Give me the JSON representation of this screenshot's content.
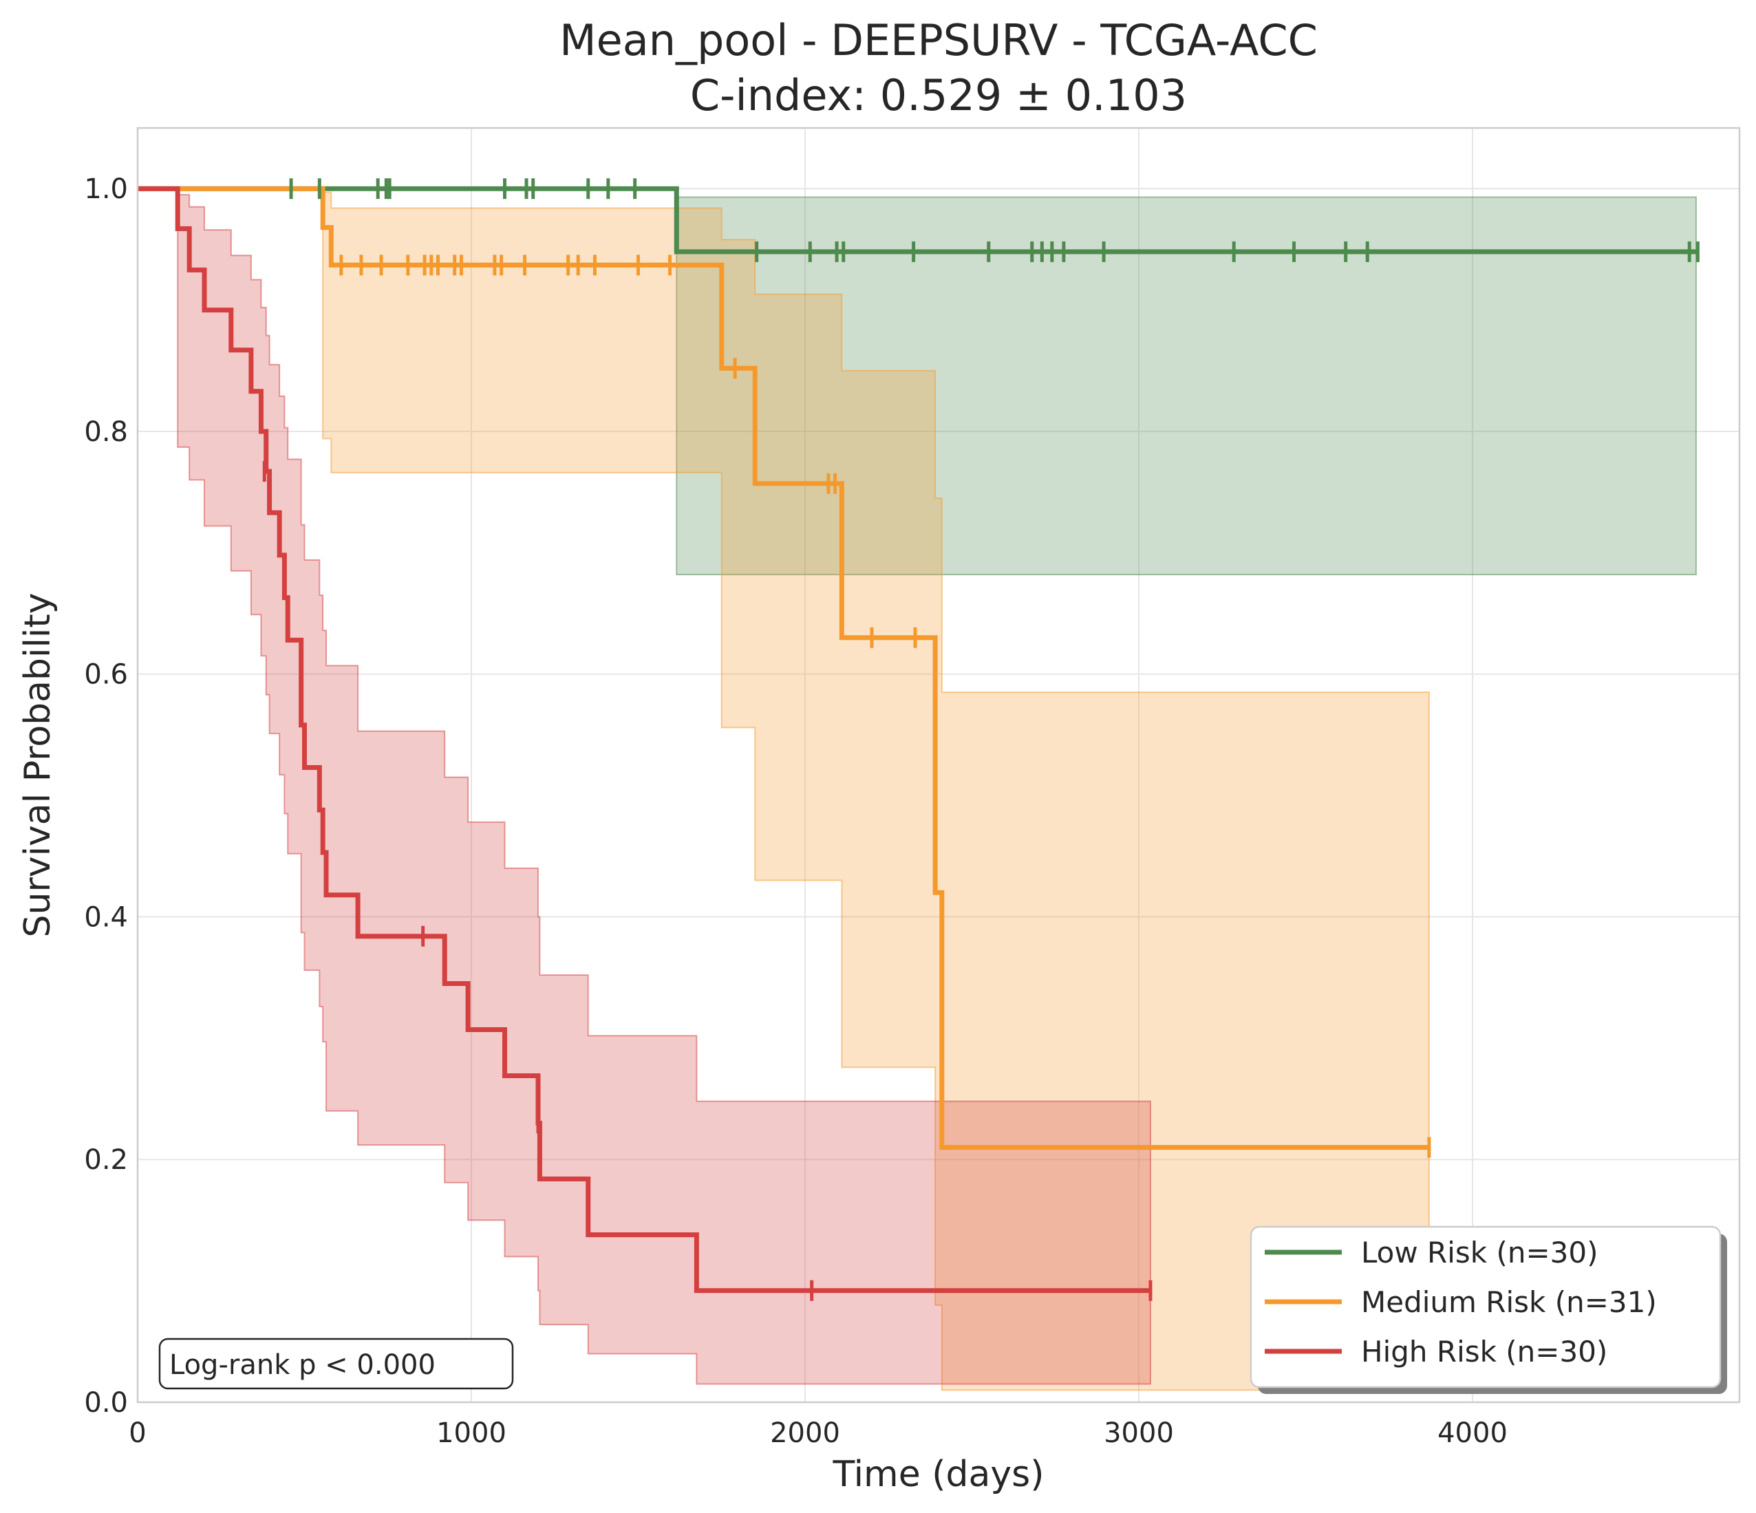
{
  "chart_data": {
    "type": "line",
    "title": "Mean_pool - DEEPSURV - TCGA-ACC",
    "subtitle": "C-index: 0.529 ± 0.103",
    "xlabel": "Time (days)",
    "ylabel": "Survival Probability",
    "xlim": [
      0,
      4800
    ],
    "ylim": [
      0,
      1.05
    ],
    "xticks": [
      0,
      1000,
      2000,
      3000,
      4000
    ],
    "xtick_labels": [
      "0",
      "1000",
      "2000",
      "3000",
      "4000"
    ],
    "yticks": [
      0,
      0.2,
      0.4,
      0.6,
      0.8,
      1.0
    ],
    "ytick_labels": [
      "0.0",
      "0.2",
      "0.4",
      "0.6",
      "0.8",
      "1.0"
    ],
    "grid": true,
    "legend_position": "bottom-right",
    "annotation": "Log-rank p < 0.000",
    "series": [
      {
        "name": "Low Risk (n=30)",
        "color": "#4e8a4e",
        "steps": [
          [
            0,
            1.0
          ],
          [
            1615,
            0.948
          ],
          [
            4670,
            0.948
          ]
        ],
        "censored": [
          [
            460,
            1.0
          ],
          [
            545,
            1.0
          ],
          [
            720,
            1.0
          ],
          [
            745,
            1.0
          ],
          [
            755,
            1.0
          ],
          [
            1100,
            1.0
          ],
          [
            1165,
            1.0
          ],
          [
            1185,
            1.0
          ],
          [
            1350,
            1.0
          ],
          [
            1410,
            1.0
          ],
          [
            1490,
            1.0
          ],
          [
            1855,
            0.948
          ],
          [
            2015,
            0.948
          ],
          [
            2095,
            0.948
          ],
          [
            2115,
            0.948
          ],
          [
            2325,
            0.948
          ],
          [
            2550,
            0.948
          ],
          [
            2680,
            0.948
          ],
          [
            2710,
            0.948
          ],
          [
            2740,
            0.948
          ],
          [
            2775,
            0.948
          ],
          [
            2895,
            0.948
          ],
          [
            3285,
            0.948
          ],
          [
            3465,
            0.948
          ],
          [
            3620,
            0.948
          ],
          [
            3685,
            0.948
          ],
          [
            4650,
            0.948
          ],
          [
            4675,
            0.948
          ]
        ],
        "ci": [
          [
            1615,
            0.682,
            0.993
          ],
          [
            4670,
            0.682,
            0.993
          ]
        ]
      },
      {
        "name": "Medium Risk (n=31)",
        "color": "#f5992d",
        "steps": [
          [
            0,
            1.0
          ],
          [
            555,
            0.968
          ],
          [
            580,
            0.937
          ],
          [
            1750,
            0.852
          ],
          [
            1850,
            0.757
          ],
          [
            2110,
            0.63
          ],
          [
            2390,
            0.42
          ],
          [
            2410,
            0.21
          ],
          [
            3870,
            0.21
          ]
        ],
        "censored": [
          [
            610,
            0.937
          ],
          [
            670,
            0.937
          ],
          [
            730,
            0.937
          ],
          [
            810,
            0.937
          ],
          [
            860,
            0.937
          ],
          [
            880,
            0.937
          ],
          [
            900,
            0.937
          ],
          [
            950,
            0.937
          ],
          [
            970,
            0.937
          ],
          [
            1070,
            0.937
          ],
          [
            1090,
            0.937
          ],
          [
            1160,
            0.937
          ],
          [
            1290,
            0.937
          ],
          [
            1320,
            0.937
          ],
          [
            1370,
            0.937
          ],
          [
            1500,
            0.937
          ],
          [
            1595,
            0.937
          ],
          [
            1790,
            0.852
          ],
          [
            2070,
            0.757
          ],
          [
            2090,
            0.757
          ],
          [
            2200,
            0.63
          ],
          [
            2330,
            0.63
          ],
          [
            3870,
            0.21
          ]
        ],
        "ci": [
          [
            555,
            0.794,
            0.997
          ],
          [
            580,
            0.766,
            0.984
          ],
          [
            1750,
            0.556,
            0.958
          ],
          [
            1850,
            0.43,
            0.913
          ],
          [
            2110,
            0.276,
            0.85
          ],
          [
            2390,
            0.08,
            0.745
          ],
          [
            2410,
            0.01,
            0.585
          ],
          [
            3870,
            0.01,
            0.585
          ]
        ]
      },
      {
        "name": "High Risk (n=30)",
        "color": "#d43f3f",
        "steps": [
          [
            0,
            1.0
          ],
          [
            120,
            0.967
          ],
          [
            155,
            0.933
          ],
          [
            200,
            0.9
          ],
          [
            280,
            0.867
          ],
          [
            340,
            0.833
          ],
          [
            370,
            0.8
          ],
          [
            385,
            0.767
          ],
          [
            395,
            0.733
          ],
          [
            425,
            0.698
          ],
          [
            440,
            0.663
          ],
          [
            450,
            0.628
          ],
          [
            490,
            0.558
          ],
          [
            500,
            0.523
          ],
          [
            545,
            0.488
          ],
          [
            555,
            0.453
          ],
          [
            565,
            0.418
          ],
          [
            660,
            0.384
          ],
          [
            920,
            0.345
          ],
          [
            990,
            0.307
          ],
          [
            1100,
            0.269
          ],
          [
            1200,
            0.23
          ],
          [
            1205,
            0.184
          ],
          [
            1350,
            0.138
          ],
          [
            1675,
            0.092
          ],
          [
            3035,
            0.092
          ]
        ],
        "censored": [
          [
            380,
            0.767
          ],
          [
            855,
            0.384
          ],
          [
            1200,
            0.23
          ],
          [
            2020,
            0.092
          ],
          [
            3035,
            0.092
          ]
        ],
        "ci": [
          [
            120,
            0.787,
            0.995
          ],
          [
            155,
            0.76,
            0.985
          ],
          [
            200,
            0.722,
            0.966
          ],
          [
            280,
            0.685,
            0.945
          ],
          [
            340,
            0.649,
            0.925
          ],
          [
            370,
            0.615,
            0.902
          ],
          [
            385,
            0.583,
            0.879
          ],
          [
            395,
            0.551,
            0.855
          ],
          [
            425,
            0.517,
            0.829
          ],
          [
            440,
            0.485,
            0.803
          ],
          [
            450,
            0.452,
            0.777
          ],
          [
            490,
            0.387,
            0.723
          ],
          [
            500,
            0.356,
            0.694
          ],
          [
            545,
            0.326,
            0.665
          ],
          [
            555,
            0.297,
            0.636
          ],
          [
            565,
            0.24,
            0.607
          ],
          [
            660,
            0.212,
            0.553
          ],
          [
            920,
            0.181,
            0.515
          ],
          [
            990,
            0.15,
            0.478
          ],
          [
            1100,
            0.12,
            0.44
          ],
          [
            1200,
            0.092,
            0.4
          ],
          [
            1205,
            0.064,
            0.352
          ],
          [
            1350,
            0.04,
            0.302
          ],
          [
            1675,
            0.015,
            0.248
          ],
          [
            3035,
            0.015,
            0.248
          ]
        ]
      }
    ]
  }
}
